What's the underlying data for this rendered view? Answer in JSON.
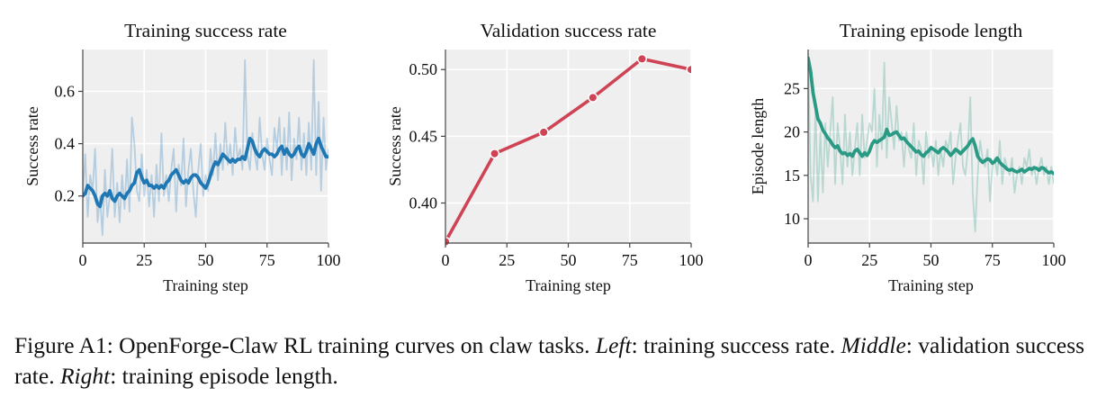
{
  "colors": {
    "panel_bg": "#efefef",
    "grid": "#ffffff",
    "train_success": "#1f77b4",
    "validation": "#cf4455",
    "episode_length": "#2a9a85"
  },
  "caption": {
    "label": "Figure A1:",
    "text1": " OpenForge-Claw RL training curves on claw tasks. ",
    "left": "Left",
    "text2": ": training success rate. ",
    "middle": "Middle",
    "text3": ": validation success rate. ",
    "right": "Right",
    "text4": ": training episode length."
  },
  "chart_data": [
    {
      "type": "line",
      "title": "Training success rate",
      "xlabel": "Training step",
      "ylabel": "Success rate",
      "xlim": [
        0,
        100
      ],
      "ylim": [
        0.02,
        0.76
      ],
      "xticks": [
        0,
        25,
        50,
        75,
        100
      ],
      "yticks": [
        0.2,
        0.4,
        0.6
      ],
      "ytick_labels": [
        "0.2",
        "0.4",
        "0.6"
      ],
      "grid": true,
      "series": [
        {
          "role": "raw",
          "x": [
            0,
            1,
            2,
            3,
            4,
            5,
            6,
            7,
            8,
            9,
            10,
            11,
            12,
            13,
            14,
            15,
            16,
            17,
            18,
            19,
            20,
            21,
            22,
            23,
            24,
            25,
            26,
            27,
            28,
            29,
            30,
            31,
            32,
            33,
            34,
            35,
            36,
            37,
            38,
            39,
            40,
            41,
            42,
            43,
            44,
            45,
            46,
            47,
            48,
            49,
            50,
            51,
            52,
            53,
            54,
            55,
            56,
            57,
            58,
            59,
            60,
            61,
            62,
            63,
            64,
            65,
            66,
            67,
            68,
            69,
            70,
            71,
            72,
            73,
            74,
            75,
            76,
            77,
            78,
            79,
            80,
            81,
            82,
            83,
            84,
            85,
            86,
            87,
            88,
            89,
            90,
            91,
            92,
            93,
            94,
            95,
            96,
            97,
            98,
            99,
            100
          ],
          "values": [
            0.2,
            0.36,
            0.12,
            0.28,
            0.22,
            0.38,
            0.1,
            0.2,
            0.05,
            0.3,
            0.12,
            0.2,
            0.38,
            0.12,
            0.25,
            0.1,
            0.28,
            0.15,
            0.34,
            0.14,
            0.5,
            0.4,
            0.22,
            0.18,
            0.36,
            0.2,
            0.3,
            0.16,
            0.28,
            0.12,
            0.32,
            0.18,
            0.44,
            0.2,
            0.28,
            0.18,
            0.3,
            0.38,
            0.14,
            0.32,
            0.24,
            0.42,
            0.16,
            0.3,
            0.38,
            0.22,
            0.12,
            0.3,
            0.4,
            0.2,
            0.28,
            0.22,
            0.38,
            0.28,
            0.44,
            0.26,
            0.4,
            0.3,
            0.48,
            0.32,
            0.4,
            0.28,
            0.46,
            0.34,
            0.38,
            0.3,
            0.72,
            0.36,
            0.3,
            0.44,
            0.36,
            0.3,
            0.5,
            0.36,
            0.3,
            0.42,
            0.34,
            0.28,
            0.46,
            0.38,
            0.5,
            0.28,
            0.46,
            0.3,
            0.52,
            0.26,
            0.42,
            0.34,
            0.5,
            0.3,
            0.44,
            0.28,
            0.48,
            0.3,
            0.72,
            0.28,
            0.56,
            0.22,
            0.5,
            0.3,
            0.38
          ]
        },
        {
          "role": "smoothed",
          "x": [
            0,
            1,
            2,
            3,
            4,
            5,
            6,
            7,
            8,
            9,
            10,
            11,
            12,
            13,
            14,
            15,
            16,
            17,
            18,
            19,
            20,
            21,
            22,
            23,
            24,
            25,
            26,
            27,
            28,
            29,
            30,
            31,
            32,
            33,
            34,
            35,
            36,
            37,
            38,
            39,
            40,
            41,
            42,
            43,
            44,
            45,
            46,
            47,
            48,
            49,
            50,
            51,
            52,
            53,
            54,
            55,
            56,
            57,
            58,
            59,
            60,
            61,
            62,
            63,
            64,
            65,
            66,
            67,
            68,
            69,
            70,
            71,
            72,
            73,
            74,
            75,
            76,
            77,
            78,
            79,
            80,
            81,
            82,
            83,
            84,
            85,
            86,
            87,
            88,
            89,
            90,
            91,
            92,
            93,
            94,
            95,
            96,
            97,
            98,
            99,
            100
          ],
          "values": [
            0.2,
            0.21,
            0.24,
            0.23,
            0.22,
            0.2,
            0.17,
            0.16,
            0.2,
            0.21,
            0.2,
            0.22,
            0.19,
            0.18,
            0.2,
            0.21,
            0.2,
            0.19,
            0.21,
            0.22,
            0.24,
            0.25,
            0.29,
            0.3,
            0.27,
            0.25,
            0.26,
            0.24,
            0.24,
            0.23,
            0.24,
            0.23,
            0.24,
            0.23,
            0.25,
            0.26,
            0.28,
            0.29,
            0.3,
            0.28,
            0.26,
            0.25,
            0.26,
            0.25,
            0.27,
            0.28,
            0.28,
            0.27,
            0.25,
            0.24,
            0.23,
            0.25,
            0.28,
            0.31,
            0.33,
            0.32,
            0.34,
            0.36,
            0.35,
            0.34,
            0.33,
            0.34,
            0.33,
            0.34,
            0.34,
            0.35,
            0.34,
            0.38,
            0.42,
            0.41,
            0.38,
            0.36,
            0.35,
            0.37,
            0.38,
            0.37,
            0.36,
            0.36,
            0.35,
            0.36,
            0.38,
            0.39,
            0.36,
            0.38,
            0.36,
            0.35,
            0.36,
            0.38,
            0.39,
            0.36,
            0.35,
            0.37,
            0.4,
            0.38,
            0.36,
            0.4,
            0.42,
            0.39,
            0.37,
            0.35,
            0.35
          ]
        }
      ]
    },
    {
      "type": "line",
      "title": "Validation success rate",
      "xlabel": "Training step",
      "ylabel": "Success rate",
      "xlim": [
        0,
        100
      ],
      "ylim": [
        0.37,
        0.515
      ],
      "xticks": [
        0,
        25,
        50,
        75,
        100
      ],
      "yticks": [
        0.4,
        0.45,
        0.5
      ],
      "ytick_labels": [
        "0.40",
        "0.45",
        "0.50"
      ],
      "grid": true,
      "series": [
        {
          "role": "markers",
          "x": [
            0,
            20,
            40,
            60,
            80,
            100
          ],
          "values": [
            0.371,
            0.437,
            0.453,
            0.479,
            0.508,
            0.5
          ]
        }
      ]
    },
    {
      "type": "line",
      "title": "Training episode length",
      "xlabel": "Training step",
      "ylabel": "Episode length",
      "xlim": [
        0,
        100
      ],
      "ylim": [
        7.2,
        29.5
      ],
      "xticks": [
        0,
        25,
        50,
        75,
        100
      ],
      "yticks": [
        10,
        15,
        20,
        25
      ],
      "ytick_labels": [
        "10",
        "15",
        "20",
        "25"
      ],
      "grid": true,
      "series": [
        {
          "role": "raw",
          "x": [
            0,
            1,
            2,
            3,
            4,
            5,
            6,
            7,
            8,
            9,
            10,
            11,
            12,
            13,
            14,
            15,
            16,
            17,
            18,
            19,
            20,
            21,
            22,
            23,
            24,
            25,
            26,
            27,
            28,
            29,
            30,
            31,
            32,
            33,
            34,
            35,
            36,
            37,
            38,
            39,
            40,
            41,
            42,
            43,
            44,
            45,
            46,
            47,
            48,
            49,
            50,
            51,
            52,
            53,
            54,
            55,
            56,
            57,
            58,
            59,
            60,
            61,
            62,
            63,
            64,
            65,
            66,
            67,
            68,
            69,
            70,
            71,
            72,
            73,
            74,
            75,
            76,
            77,
            78,
            79,
            80,
            81,
            82,
            83,
            84,
            85,
            86,
            87,
            88,
            89,
            90,
            91,
            92,
            93,
            94,
            95,
            96,
            97,
            98,
            99,
            100
          ],
          "values": [
            29,
            15,
            12,
            23,
            12,
            20,
            13,
            21,
            16,
            20,
            24,
            14,
            21,
            18,
            14,
            22,
            16,
            20,
            15,
            18,
            21,
            15,
            22,
            17,
            19,
            21,
            20,
            25,
            16,
            22,
            18,
            28,
            17,
            24,
            21,
            18,
            23,
            19,
            20,
            16,
            20,
            18,
            17,
            21,
            15,
            19,
            18,
            14,
            20,
            17,
            18,
            16,
            19,
            15,
            18,
            16,
            19,
            18,
            20,
            14,
            17,
            19,
            21,
            16,
            15,
            18,
            24,
            13,
            8.5,
            15,
            19,
            17,
            16,
            18,
            12,
            16,
            17,
            15,
            19,
            14,
            17,
            16,
            15,
            17,
            13,
            15,
            16,
            14,
            17,
            16,
            18,
            15,
            16,
            14,
            16,
            17,
            15,
            16,
            14,
            16,
            14
          ]
        },
        {
          "role": "smoothed",
          "x": [
            0,
            1,
            2,
            3,
            4,
            5,
            6,
            7,
            8,
            9,
            10,
            11,
            12,
            13,
            14,
            15,
            16,
            17,
            18,
            19,
            20,
            21,
            22,
            23,
            24,
            25,
            26,
            27,
            28,
            29,
            30,
            31,
            32,
            33,
            34,
            35,
            36,
            37,
            38,
            39,
            40,
            41,
            42,
            43,
            44,
            45,
            46,
            47,
            48,
            49,
            50,
            51,
            52,
            53,
            54,
            55,
            56,
            57,
            58,
            59,
            60,
            61,
            62,
            63,
            64,
            65,
            66,
            67,
            68,
            69,
            70,
            71,
            72,
            73,
            74,
            75,
            76,
            77,
            78,
            79,
            80,
            81,
            82,
            83,
            84,
            85,
            86,
            87,
            88,
            89,
            90,
            91,
            92,
            93,
            94,
            95,
            96,
            97,
            98,
            99,
            100
          ],
          "values": [
            28.5,
            27,
            24.5,
            23,
            21.5,
            21,
            20.2,
            19.8,
            19.3,
            19,
            18.5,
            18.2,
            18.4,
            17.8,
            17.5,
            17.6,
            17.3,
            17.5,
            17.2,
            17.8,
            18,
            17.6,
            17.2,
            17.6,
            17.3,
            17.8,
            18.6,
            19,
            18.8,
            19,
            19.2,
            19.4,
            20.3,
            19.6,
            19.7,
            19.9,
            20,
            19.6,
            19.2,
            19.3,
            18.9,
            18.6,
            18.3,
            18,
            17.7,
            17.8,
            17.4,
            17.2,
            17.6,
            17.8,
            18.2,
            18,
            17.8,
            17.6,
            18,
            18.2,
            18,
            17.7,
            17.3,
            17.6,
            18,
            17.8,
            17.5,
            17.8,
            18.1,
            18.4,
            18.9,
            19.2,
            18.4,
            17.2,
            16.8,
            16.5,
            16.7,
            16.9,
            16.8,
            16.4,
            16.6,
            17,
            16.5,
            16.2,
            16,
            15.7,
            15.6,
            15.7,
            15.5,
            15.4,
            15.5,
            15.7,
            15.4,
            15.6,
            15.8,
            15.7,
            15.9,
            15.8,
            15.6,
            15.9,
            15.8,
            15.5,
            15.3,
            15.4,
            15.2
          ]
        }
      ]
    }
  ]
}
